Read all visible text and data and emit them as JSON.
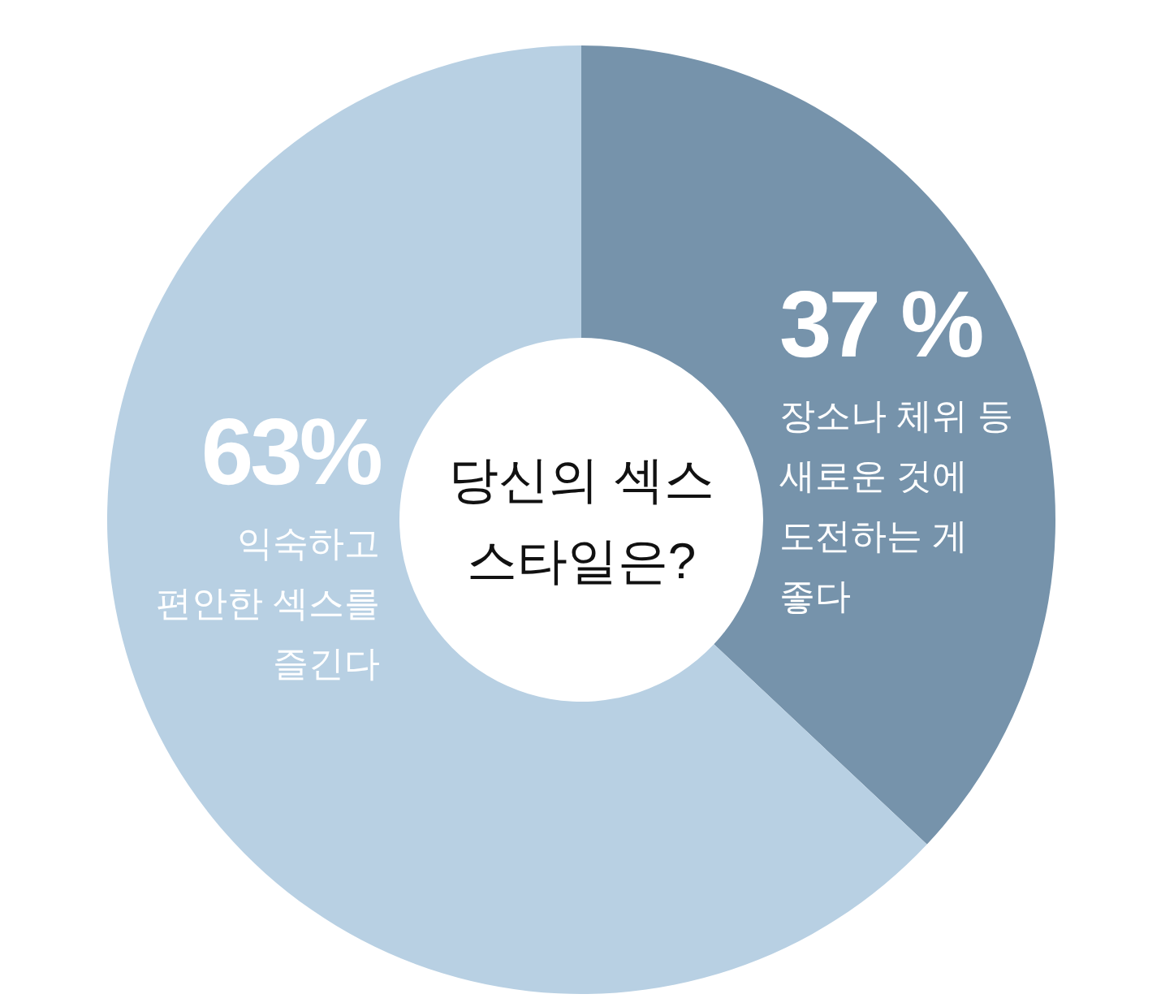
{
  "chart_data": {
    "type": "donut",
    "title": "당신의 섹스\n스타일은?",
    "categories": [
      "장소나 체위 등\n새로운 것에\n도전하는 게\n좋다",
      "익숙하고\n편안한 섹스를\n즐긴다"
    ],
    "values": [
      37,
      63
    ],
    "colors": [
      "#7693ab",
      "#b8d0e3"
    ],
    "value_labels": [
      "37 %",
      "63%"
    ]
  }
}
